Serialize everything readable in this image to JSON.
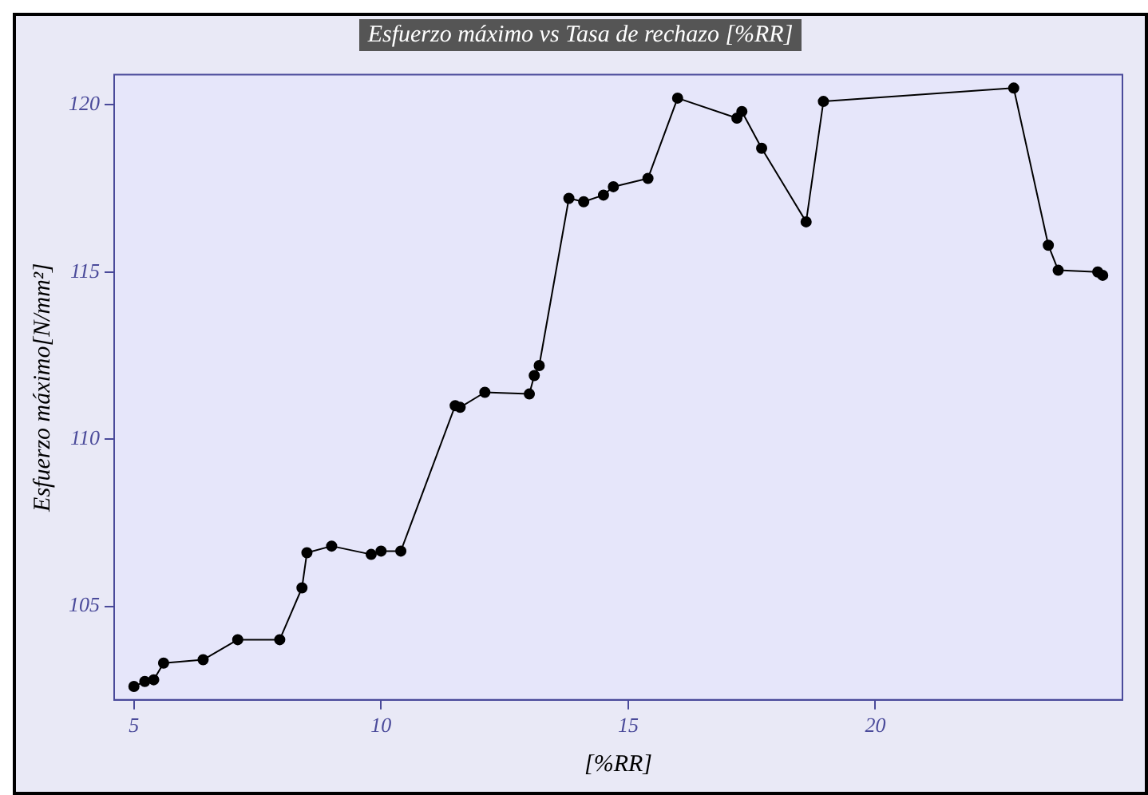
{
  "chart_data": {
    "type": "line",
    "title": "Esfuerzo máximo vs Tasa de rechazo [%RR]",
    "xlabel": "[%RR]",
    "ylabel": "Esfuerzo máximo[N/mm²]",
    "x": [
      5.0,
      5.22,
      5.4,
      5.6,
      6.4,
      7.1,
      7.95,
      8.4,
      8.5,
      9.0,
      9.8,
      10.0,
      10.4,
      11.5,
      11.6,
      12.1,
      13.0,
      13.1,
      13.2,
      13.8,
      14.1,
      14.5,
      14.7,
      15.4,
      16.0,
      17.2,
      17.3,
      17.7,
      18.6,
      18.95,
      22.8,
      23.5,
      23.7,
      24.5,
      24.6
    ],
    "series": [
      {
        "color": "#000000",
        "values": [
          102.6,
          102.75,
          102.8,
          103.3,
          103.4,
          104.0,
          104.0,
          105.55,
          106.6,
          106.8,
          106.55,
          106.65,
          106.65,
          111.0,
          110.95,
          111.4,
          111.35,
          111.9,
          112.2,
          117.2,
          117.1,
          117.3,
          117.55,
          117.8,
          120.2,
          119.6,
          119.8,
          118.7,
          116.5,
          120.1,
          120.5,
          115.8,
          115.05,
          115.0,
          114.9
        ]
      }
    ],
    "xlim": [
      4.6,
      25
    ],
    "ylim": [
      102.2,
      120.9
    ],
    "xticks": [
      5,
      10,
      15,
      20
    ],
    "yticks": [
      105,
      110,
      115,
      120
    ],
    "grid": false,
    "legend": false,
    "marker": "circle",
    "line_style": "solid"
  }
}
